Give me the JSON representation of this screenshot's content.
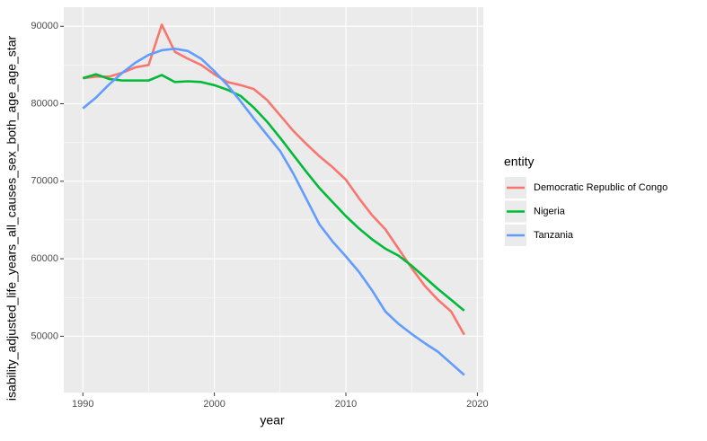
{
  "chart_data": {
    "type": "line",
    "x_label": "year",
    "y_label": "isability_adjusted_life_years_all_causes_sex_both_age_age_star",
    "x": [
      1990,
      1991,
      1992,
      1993,
      1994,
      1995,
      1996,
      1997,
      1998,
      1999,
      2000,
      2001,
      2002,
      2003,
      2004,
      2005,
      2006,
      2007,
      2008,
      2009,
      2010,
      2011,
      2012,
      2013,
      2014,
      2015,
      2016,
      2017,
      2018,
      2019
    ],
    "series": [
      {
        "name": "Democratic Republic of Congo",
        "color": "#f8766d",
        "values": [
          83300,
          83500,
          83500,
          84000,
          84700,
          85000,
          90200,
          86700,
          85800,
          85000,
          83800,
          82800,
          82400,
          81900,
          80500,
          78500,
          76500,
          74800,
          73200,
          71800,
          70200,
          67800,
          65600,
          63800,
          61300,
          58800,
          56500,
          54700,
          53200,
          50200
        ]
      },
      {
        "name": "Nigeria",
        "color": "#00ba38",
        "values": [
          83300,
          83800,
          83200,
          83000,
          83000,
          83000,
          83700,
          82800,
          82900,
          82800,
          82400,
          81800,
          81000,
          79500,
          77700,
          75600,
          73400,
          71200,
          69100,
          67300,
          65500,
          63900,
          62500,
          61300,
          60400,
          59100,
          57600,
          56100,
          54700,
          53300
        ]
      },
      {
        "name": "Tanzania",
        "color": "#619cff",
        "values": [
          79400,
          80800,
          82500,
          84000,
          85300,
          86300,
          86900,
          87100,
          86800,
          85800,
          84200,
          82400,
          80300,
          78100,
          76000,
          73900,
          71000,
          67700,
          64400,
          62200,
          60300,
          58300,
          55900,
          53200,
          51600,
          50300,
          49100,
          48000,
          46500,
          45000
        ]
      }
    ],
    "xlim": [
      1988.55,
      2020.45
    ],
    "xticks": [
      1990,
      2000,
      2010,
      2020
    ],
    "ylim": [
      42740,
      92460
    ],
    "yticks": [
      50000,
      60000,
      70000,
      80000,
      90000
    ],
    "grid": true,
    "legend": {
      "title": "entity",
      "position": "right"
    }
  }
}
